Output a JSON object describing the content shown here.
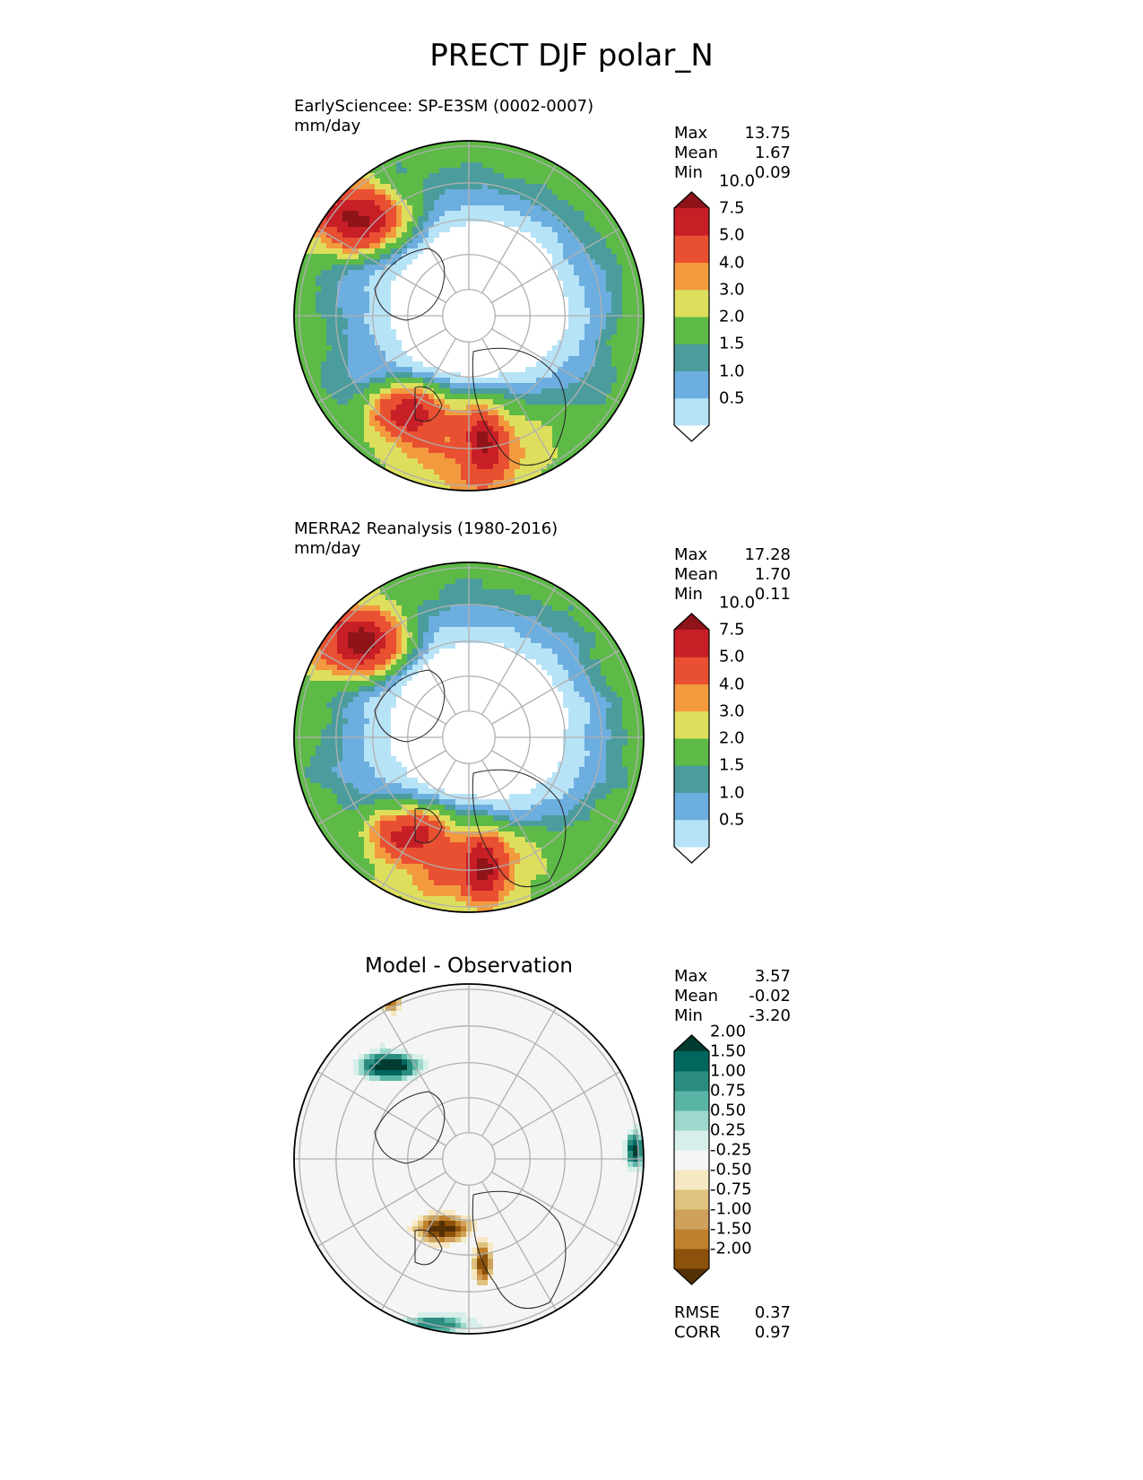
{
  "figure_title": "PRECT DJF polar_N",
  "panels": [
    {
      "title": "EarlySciencee: SP-E3SM (0002-0007)",
      "units": "mm/day",
      "stats": [
        {
          "label": "Max",
          "value": "13.75"
        },
        {
          "label": "Mean",
          "value": "1.67"
        },
        {
          "label": "Min",
          "value": "0.09"
        }
      ]
    },
    {
      "title": "MERRA2 Reanalysis (1980-2016)",
      "units": "mm/day",
      "stats": [
        {
          "label": "Max",
          "value": "17.28"
        },
        {
          "label": "Mean",
          "value": "1.70"
        },
        {
          "label": "Min",
          "value": "0.11"
        }
      ]
    },
    {
      "title": "Model - Observation",
      "stats": [
        {
          "label": "Max",
          "value": "3.57"
        },
        {
          "label": "Mean",
          "value": "-0.02"
        },
        {
          "label": "Min",
          "value": "-3.20"
        }
      ],
      "metrics": [
        {
          "label": "RMSE",
          "value": "0.37"
        },
        {
          "label": "CORR",
          "value": "0.97"
        }
      ]
    }
  ],
  "chart_data": [
    {
      "type": "heatmap",
      "projection": "north polar stereographic",
      "title": "EarlySciencee: SP-E3SM (0002-0007)",
      "units": "mm/day",
      "stats": {
        "max": 13.75,
        "mean": 1.67,
        "min": 0.09
      },
      "colorbar": {
        "levels": [
          0.5,
          1.0,
          1.5,
          2.0,
          3.0,
          4.0,
          5.0,
          7.5,
          10.0
        ],
        "tick_labels": [
          "0.5",
          "1.0",
          "1.5",
          "2.0",
          "3.0",
          "4.0",
          "5.0",
          "7.5",
          "10.0"
        ],
        "colors": [
          "#ffffff",
          "#b7e3f7",
          "#6caedf",
          "#4a9d9c",
          "#5dba47",
          "#dddf5c",
          "#f39a3f",
          "#e85031",
          "#c81f27",
          "#8e1419"
        ],
        "extend": "both"
      }
    },
    {
      "type": "heatmap",
      "projection": "north polar stereographic",
      "title": "MERRA2 Reanalysis (1980-2016)",
      "units": "mm/day",
      "stats": {
        "max": 17.28,
        "mean": 1.7,
        "min": 0.11
      },
      "colorbar": {
        "levels": [
          0.5,
          1.0,
          1.5,
          2.0,
          3.0,
          4.0,
          5.0,
          7.5,
          10.0
        ],
        "tick_labels": [
          "0.5",
          "1.0",
          "1.5",
          "2.0",
          "3.0",
          "4.0",
          "5.0",
          "7.5",
          "10.0"
        ],
        "colors": [
          "#ffffff",
          "#b7e3f7",
          "#6caedf",
          "#4a9d9c",
          "#5dba47",
          "#dddf5c",
          "#f39a3f",
          "#e85031",
          "#c81f27",
          "#8e1419"
        ],
        "extend": "both"
      }
    },
    {
      "type": "heatmap",
      "projection": "north polar stereographic",
      "title": "Model - Observation",
      "stats": {
        "max": 3.57,
        "mean": -0.02,
        "min": -3.2
      },
      "metrics": {
        "rmse": 0.37,
        "corr": 0.97
      },
      "colorbar": {
        "levels": [
          -2.0,
          -1.5,
          -1.0,
          -0.75,
          -0.5,
          -0.25,
          0.25,
          0.5,
          0.75,
          1.0,
          1.5,
          2.0
        ],
        "tick_labels": [
          "-2.00",
          "-1.50",
          "-1.00",
          "-0.75",
          "-0.50",
          "-0.25",
          "0.25",
          "0.50",
          "0.75",
          "1.00",
          "1.50",
          "2.00"
        ],
        "colors": [
          "#543005",
          "#8c510a",
          "#bf812d",
          "#cfa15a",
          "#dfc27d",
          "#f6e8c3",
          "#f5f5f5",
          "#d7efea",
          "#9dd8cc",
          "#5ab4a5",
          "#2a8d80",
          "#01665e",
          "#003c30"
        ],
        "extend": "both"
      }
    }
  ]
}
